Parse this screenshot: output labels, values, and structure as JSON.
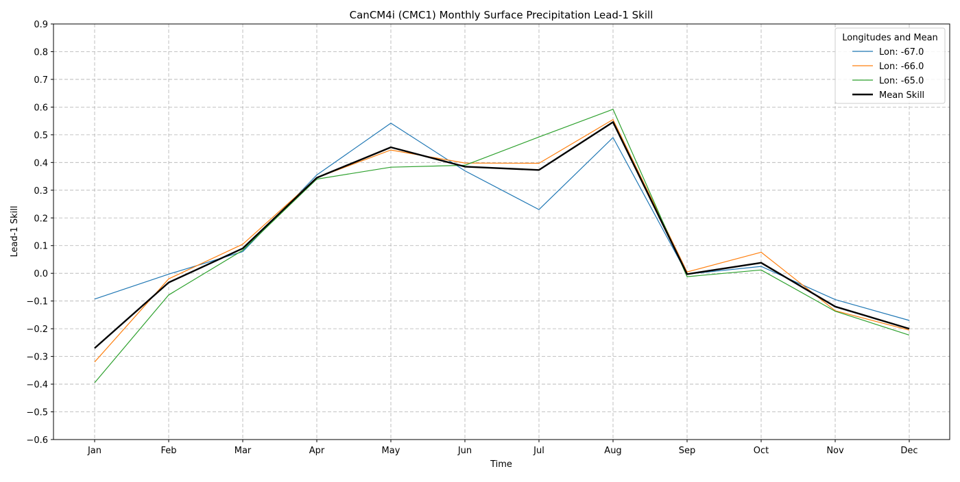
{
  "chart_data": {
    "type": "line",
    "title": "CanCM4i (CMC1) Monthly Surface Precipitation Lead-1 Skill",
    "xlabel": "Time",
    "ylabel": "Lead-1 Skill",
    "categories": [
      "Jan",
      "Feb",
      "Mar",
      "Apr",
      "May",
      "Jun",
      "Jul",
      "Aug",
      "Sep",
      "Oct",
      "Nov",
      "Dec"
    ],
    "ylim": [
      -0.6,
      0.9
    ],
    "yticks": [
      "−0.6",
      "−0.5",
      "−0.4",
      "−0.3",
      "−0.2",
      "−0.1",
      "0.0",
      "0.1",
      "0.2",
      "0.3",
      "0.4",
      "0.5",
      "0.6",
      "0.7",
      "0.8",
      "0.9"
    ],
    "grid": true,
    "legend": {
      "title": "Longitudes and Mean",
      "placement": "top-right"
    },
    "series": [
      {
        "name": "Lon: -67.0",
        "color": "#1f77b4",
        "values": [
          -0.093,
          -0.003,
          0.078,
          0.355,
          0.542,
          0.37,
          0.23,
          0.49,
          -0.003,
          0.025,
          -0.095,
          -0.17
        ]
      },
      {
        "name": "Lon: -66.0",
        "color": "#ff7f0e",
        "values": [
          -0.32,
          -0.02,
          0.105,
          0.345,
          0.445,
          0.398,
          0.397,
          0.555,
          0.005,
          0.076,
          -0.135,
          -0.205
        ]
      },
      {
        "name": "Lon: -65.0",
        "color": "#2ca02c",
        "values": [
          -0.395,
          -0.078,
          0.083,
          0.34,
          0.383,
          0.39,
          0.492,
          0.592,
          -0.012,
          0.012,
          -0.137,
          -0.223
        ]
      },
      {
        "name": "Mean Skill",
        "color": "#000000",
        "values": [
          -0.27,
          -0.033,
          0.09,
          0.345,
          0.455,
          0.385,
          0.373,
          0.546,
          -0.003,
          0.038,
          -0.12,
          -0.2
        ]
      }
    ]
  }
}
